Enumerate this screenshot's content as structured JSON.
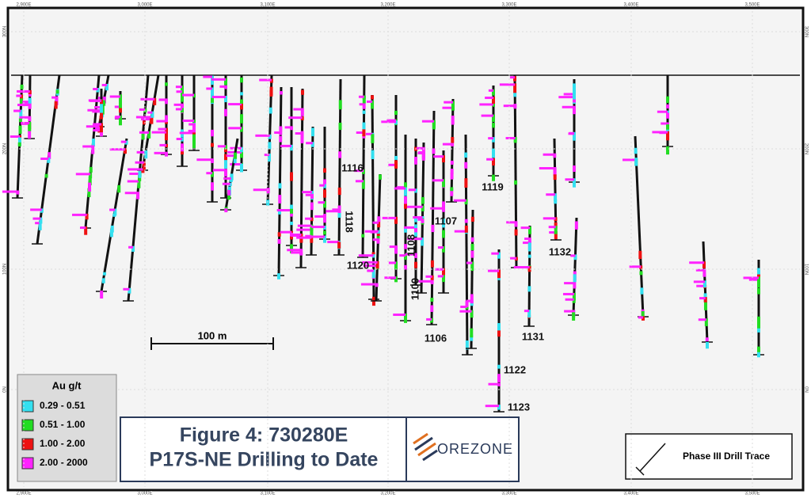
{
  "axes": {
    "east_labels": [
      "2,900E",
      "3,000E",
      "3,100E",
      "3,200E",
      "3,300E",
      "3,400E",
      "3,500E"
    ],
    "north_labels": [
      "300N",
      "200N",
      "100N",
      "0N"
    ]
  },
  "hole_labels": [
    "1116",
    "1118",
    "1120",
    "1108",
    "1109",
    "1107",
    "1106",
    "1119",
    "1122",
    "1123",
    "1131",
    "1132"
  ],
  "scale_bar": "100 m",
  "legend": {
    "title": "Au g/t",
    "items": [
      {
        "label": "0.29 - 0.51",
        "color": "#33e0f0"
      },
      {
        "label": "0.51 - 1.00",
        "color": "#22dd22"
      },
      {
        "label": "1.00 - 2.00",
        "color": "#ee1111"
      },
      {
        "label": "2.00 - 2000",
        "color": "#ff22ff"
      }
    ]
  },
  "figure_title": [
    "Figure 4: 730280E",
    "P17S-NE Drilling to Date"
  ],
  "logo": "OREZONE",
  "trace_legend": "Phase III Drill Trace"
}
